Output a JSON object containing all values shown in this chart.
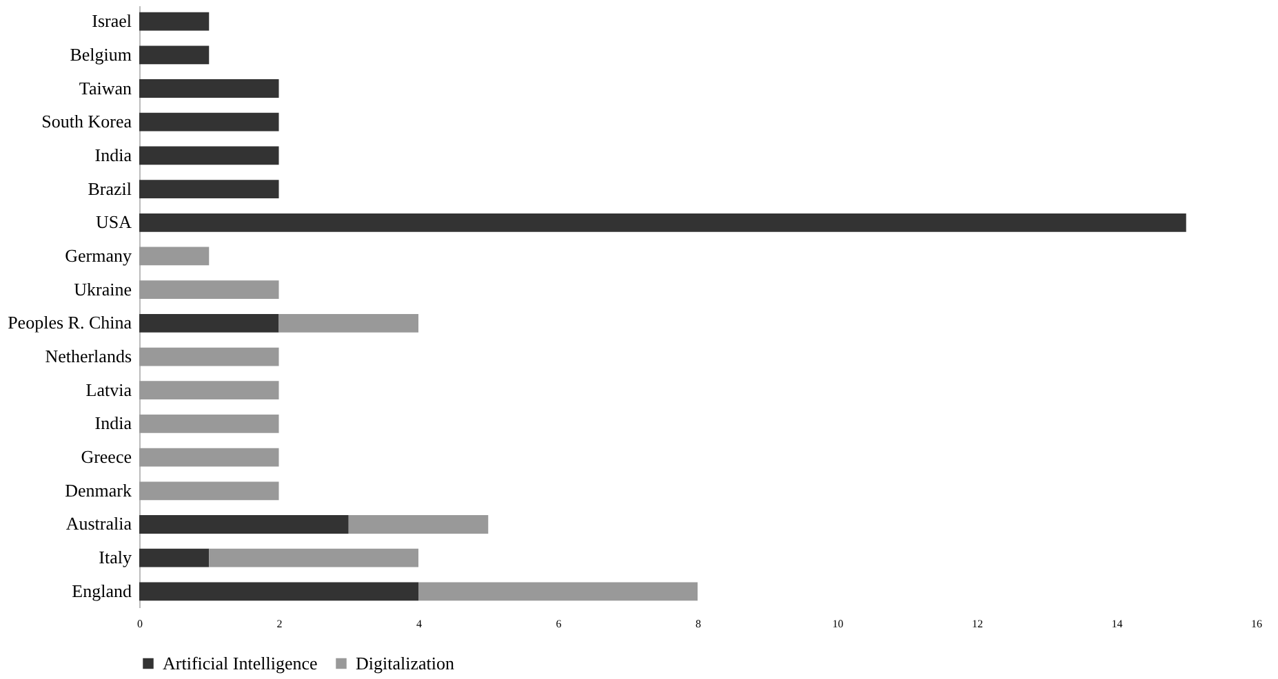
{
  "chart_data": {
    "type": "bar",
    "orientation": "horizontal",
    "stacked": true,
    "categories": [
      "Israel",
      "Belgium",
      "Taiwan",
      "South Korea",
      "India",
      "Brazil",
      "USA",
      "Germany",
      "Ukraine",
      "Peoples R. China",
      "Netherlands",
      "Latvia",
      "India",
      "Greece",
      "Denmark",
      "Australia",
      "Italy",
      "England"
    ],
    "series": [
      {
        "name": "Artificial Intelligence",
        "color": "#333333",
        "values": [
          1,
          1,
          2,
          2,
          2,
          2,
          15,
          null,
          null,
          2,
          null,
          null,
          null,
          null,
          null,
          3,
          1,
          4
        ]
      },
      {
        "name": "Digitalization",
        "color": "#999999",
        "values": [
          null,
          null,
          null,
          null,
          null,
          null,
          null,
          1,
          2,
          2,
          2,
          2,
          2,
          2,
          2,
          2,
          3,
          4
        ]
      }
    ],
    "xlim": [
      0,
      16
    ],
    "xticks": [
      0,
      2,
      4,
      6,
      8,
      10,
      12,
      14,
      16
    ],
    "grid": false,
    "legend": "bottom"
  }
}
